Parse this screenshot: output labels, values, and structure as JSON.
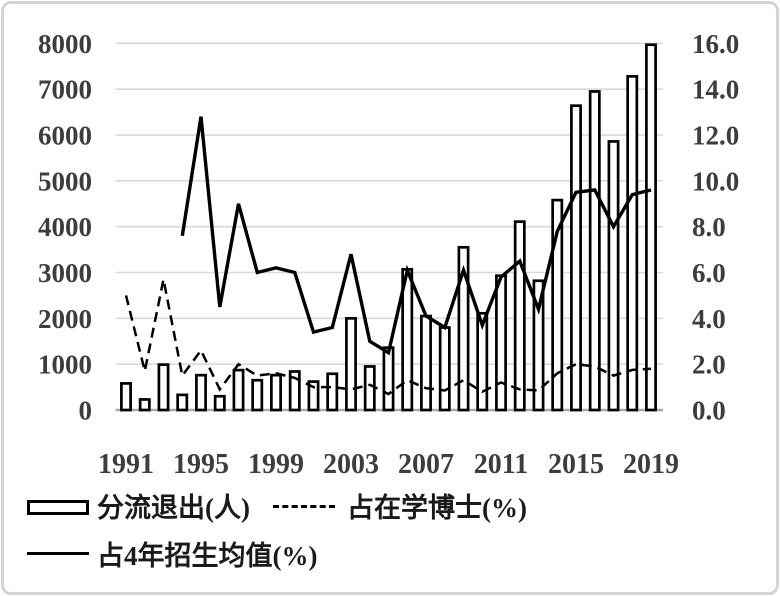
{
  "chart_data": {
    "type": "bar",
    "combo": true,
    "title": "",
    "x": [
      1991,
      1992,
      1993,
      1994,
      1995,
      1996,
      1997,
      1998,
      1999,
      2000,
      2001,
      2002,
      2003,
      2004,
      2005,
      2006,
      2007,
      2008,
      2009,
      2010,
      2011,
      2012,
      2013,
      2014,
      2015,
      2016,
      2017,
      2018,
      2019
    ],
    "x_tick_labels": [
      "1991",
      "1995",
      "1999",
      "2003",
      "2007",
      "2011",
      "2015",
      "2019"
    ],
    "left_axis": {
      "min": 0,
      "max": 8000,
      "step": 1000,
      "tick_labels": [
        "0",
        "1000",
        "2000",
        "3000",
        "4000",
        "5000",
        "6000",
        "7000",
        "8000"
      ]
    },
    "right_axis": {
      "min": 0.0,
      "max": 16.0,
      "step": 2.0,
      "tick_labels": [
        "0.0",
        "2.0",
        "4.0",
        "6.0",
        "8.0",
        "10.0",
        "12.0",
        "14.0",
        "16.0"
      ]
    },
    "series": [
      {
        "name": "分流退出(人)",
        "type": "bar",
        "axis": "left",
        "values": [
          580,
          230,
          990,
          330,
          760,
          300,
          870,
          650,
          760,
          840,
          620,
          790,
          2000,
          950,
          1360,
          3070,
          2050,
          1800,
          3550,
          2110,
          2930,
          4110,
          2820,
          4580,
          6640,
          6950,
          5860,
          7280,
          7970
        ]
      },
      {
        "name": "占在学博士(%)",
        "type": "line",
        "style": "dashed",
        "axis": "right",
        "values": [
          5.0,
          1.7,
          5.7,
          1.5,
          2.6,
          0.9,
          2.0,
          1.5,
          1.6,
          1.4,
          1.0,
          1.0,
          0.9,
          1.1,
          0.7,
          1.3,
          0.95,
          0.85,
          1.3,
          0.8,
          1.2,
          0.9,
          0.85,
          1.6,
          2.0,
          1.9,
          1.5,
          1.75,
          1.8
        ]
      },
      {
        "name": "占4年招生均值(%)",
        "type": "line",
        "style": "solid",
        "axis": "right",
        "values": [
          null,
          null,
          null,
          7.6,
          12.8,
          4.5,
          9.0,
          6.0,
          6.2,
          6.0,
          3.4,
          3.6,
          6.8,
          3.0,
          2.5,
          6.1,
          4.1,
          3.6,
          6.1,
          3.7,
          5.8,
          6.5,
          4.4,
          7.8,
          9.5,
          9.6,
          8.0,
          9.4,
          9.6
        ]
      }
    ],
    "grid": "horizontal",
    "legend_position": "bottom"
  },
  "legend": {
    "bar_label": "分流退出(人)",
    "dashed_label": "占在学博士(%)",
    "solid_label": "占4年招生均值(%)"
  },
  "colors": {
    "series_stroke": "#000000",
    "gridline": "#d9d9d9",
    "baseline": "#ababab",
    "axis_text": "#3d3d3d",
    "background": "#ffffff",
    "frame_border": "#d4d4d4"
  }
}
